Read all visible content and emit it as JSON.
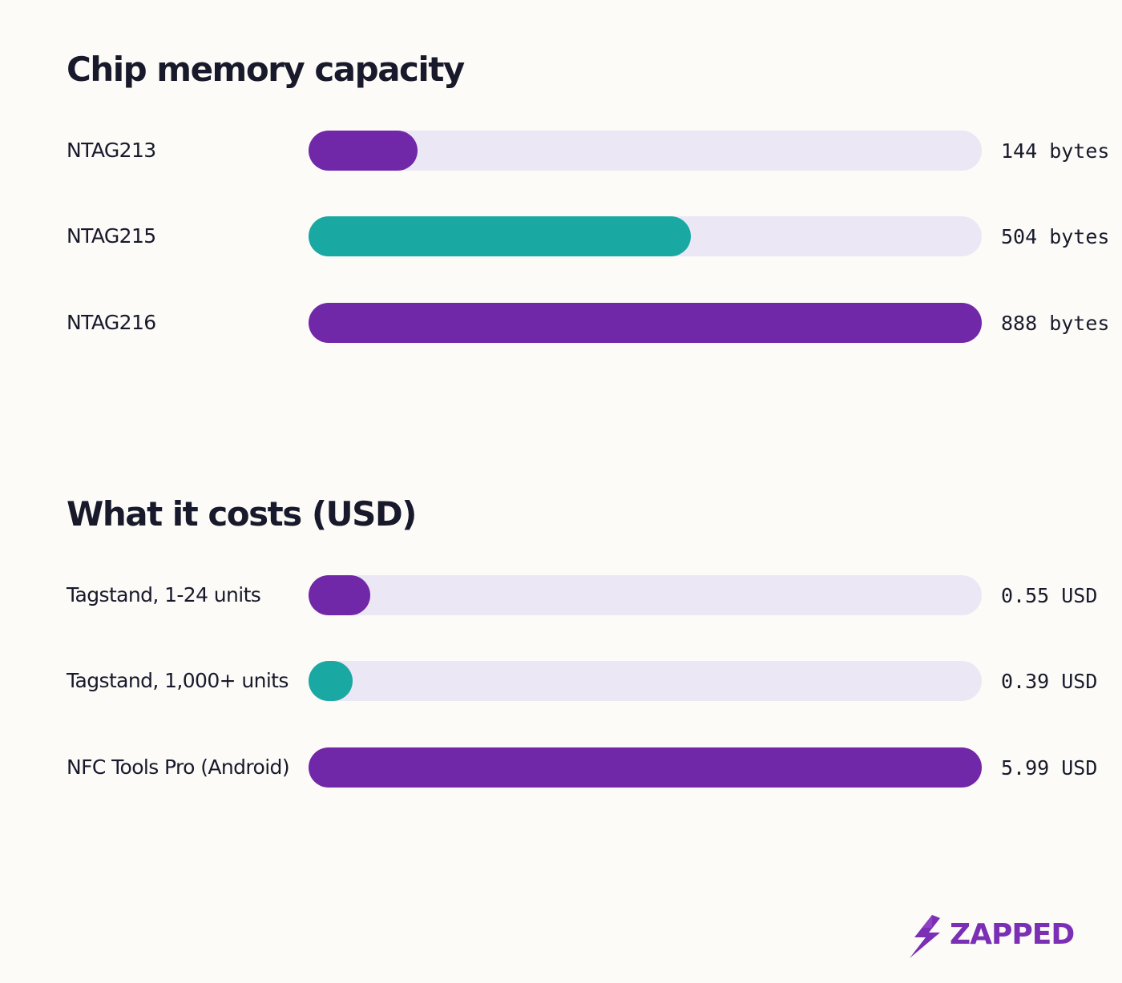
{
  "chart_data": [
    {
      "type": "bar",
      "orientation": "horizontal",
      "title": "Chip memory capacity",
      "categories": [
        "NTAG213",
        "NTAG215",
        "NTAG216"
      ],
      "values": [
        144,
        504,
        888
      ],
      "value_labels": [
        "144 bytes",
        "504 bytes",
        "888 bytes"
      ],
      "unit": "bytes",
      "xlim": [
        0,
        888
      ],
      "colors": [
        "#7028a8",
        "#19a8a2",
        "#7028a8"
      ],
      "track_color": "#ebe7f4",
      "grid": false,
      "legend": "none"
    },
    {
      "type": "bar",
      "orientation": "horizontal",
      "title": "What it costs (USD)",
      "categories": [
        "Tagstand, 1-24 units",
        "Tagstand, 1,000+ units",
        "NFC Tools Pro (Android)"
      ],
      "values": [
        0.55,
        0.39,
        5.99
      ],
      "value_labels": [
        "0.55 USD",
        "0.39 USD",
        "5.99 USD"
      ],
      "unit": "USD",
      "xlim": [
        0,
        5.99
      ],
      "colors": [
        "#7028a8",
        "#19a8a2",
        "#7028a8"
      ],
      "track_color": "#ebe7f4",
      "grid": false,
      "legend": "none"
    }
  ],
  "brand": {
    "name": "ZAPPED",
    "icon": "lightning-bolt-logo-icon",
    "color": "#7a2fb4"
  }
}
